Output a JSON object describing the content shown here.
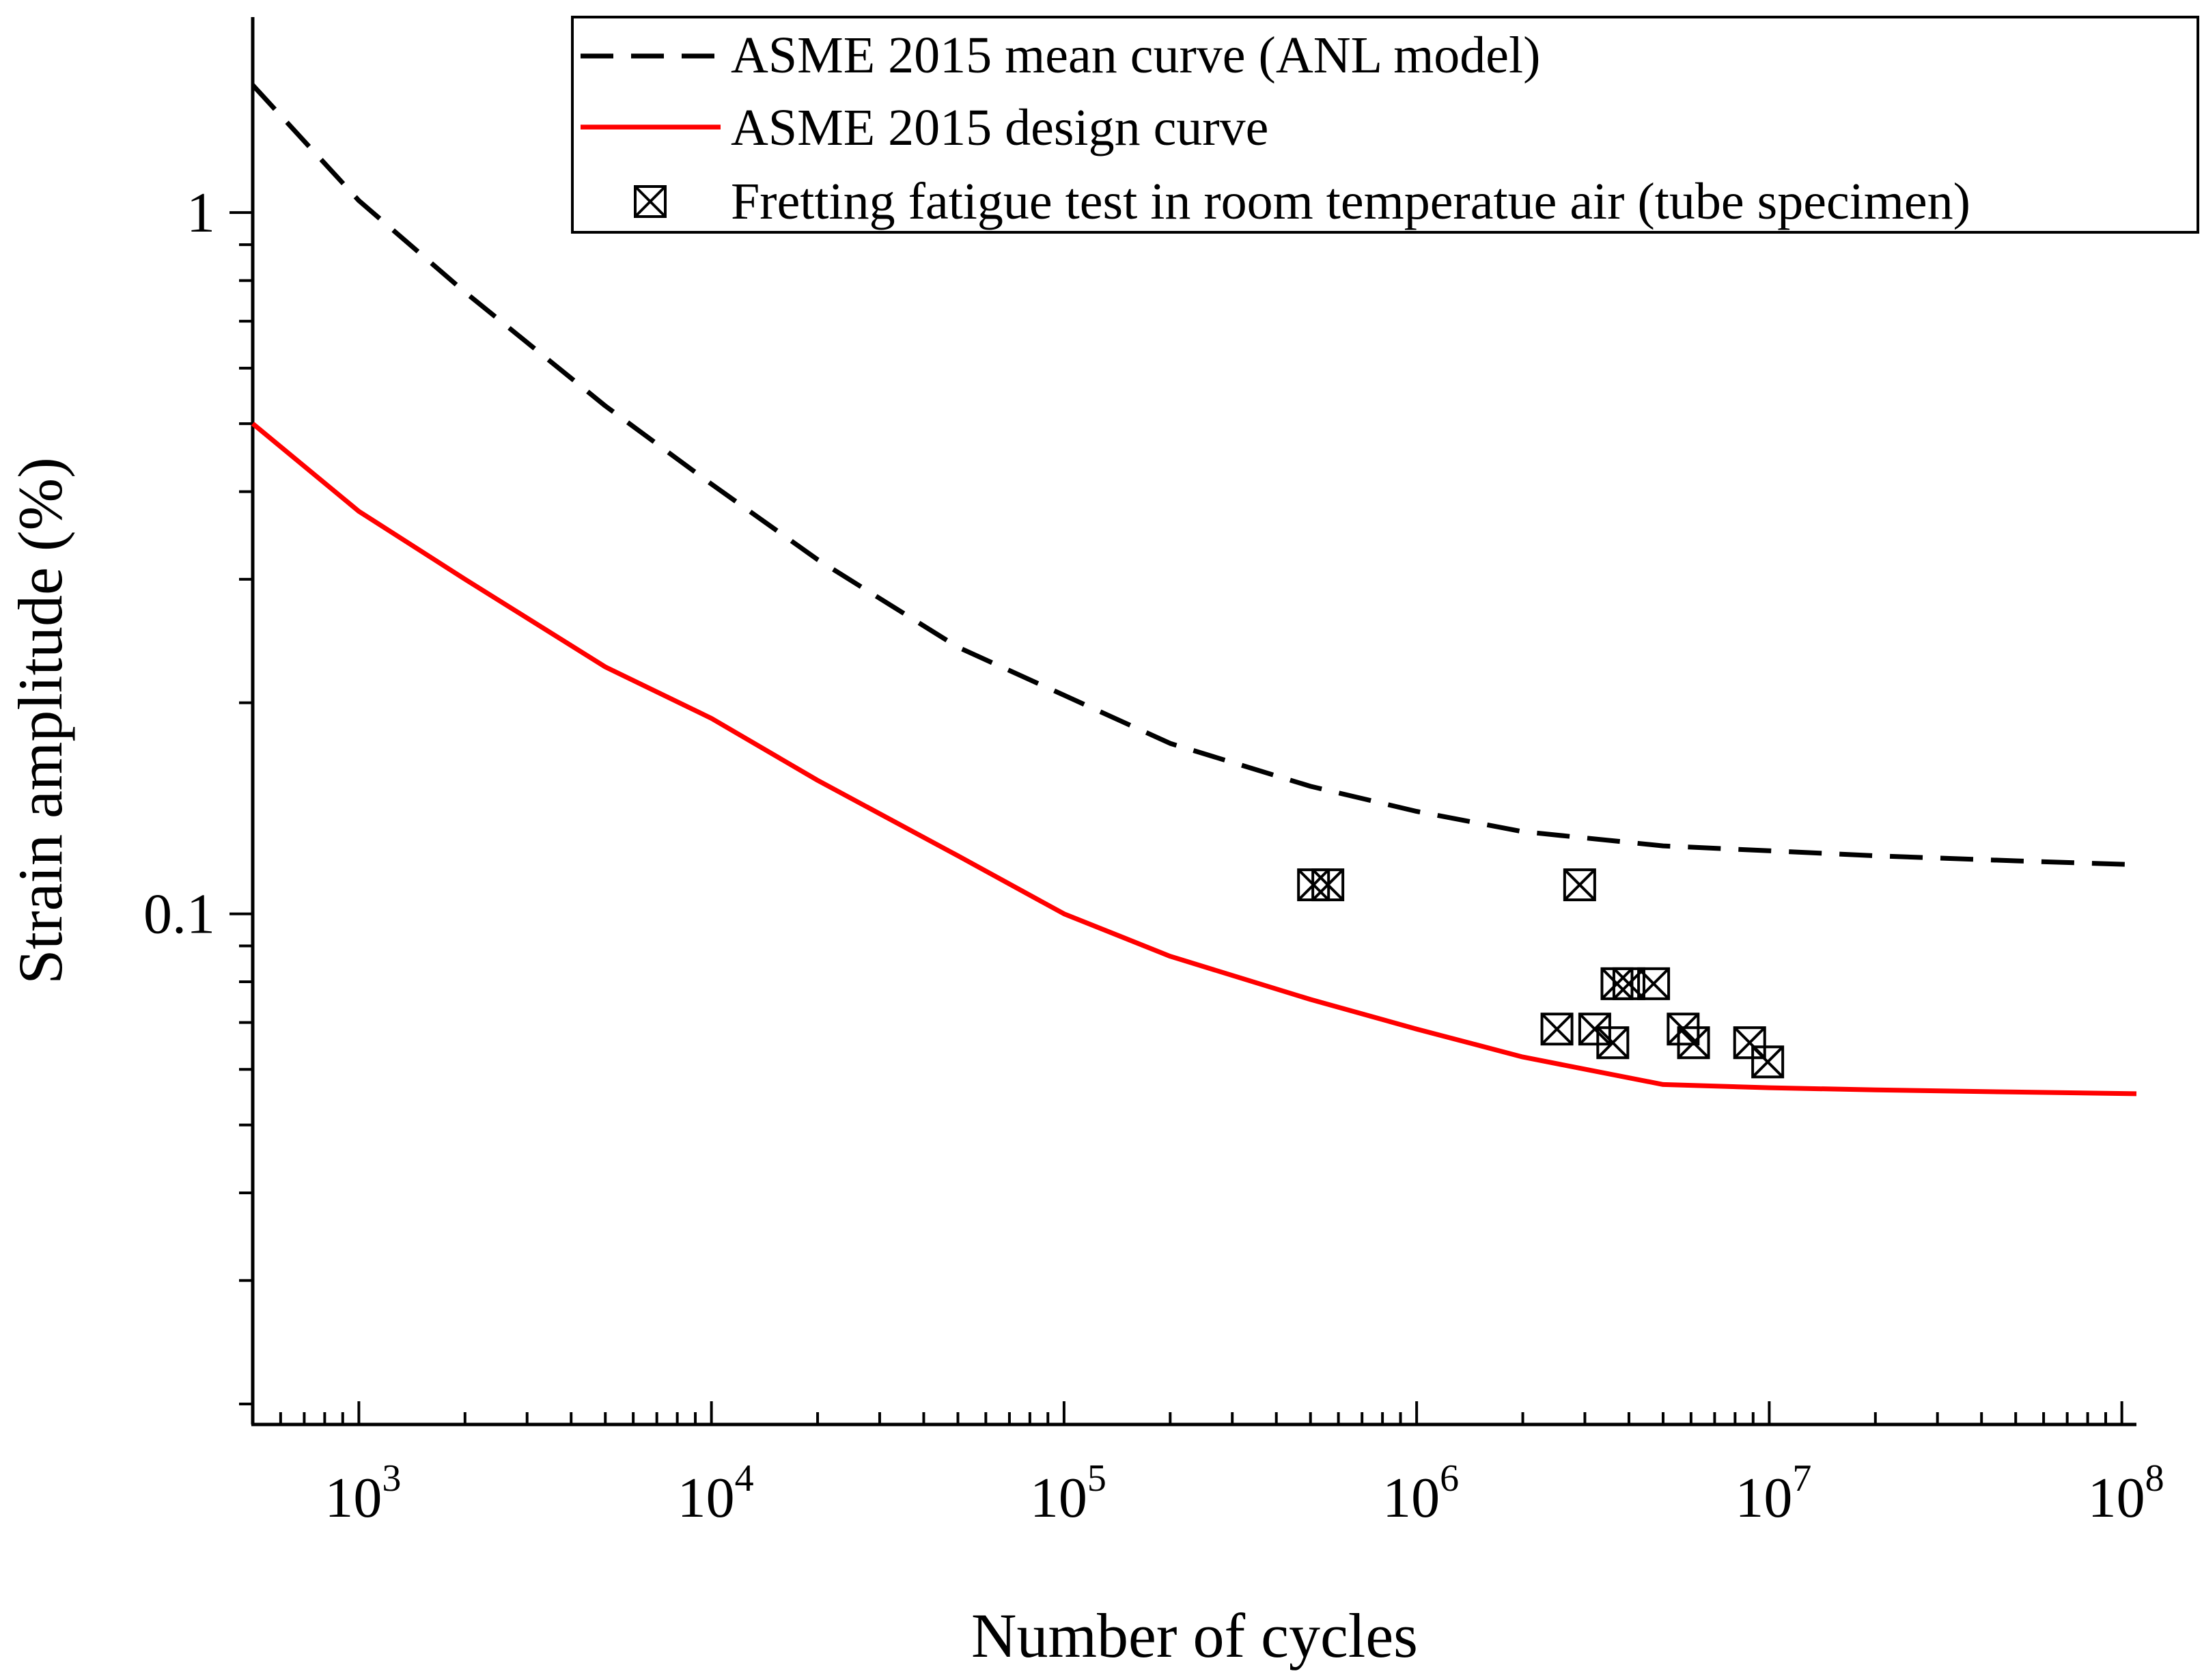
{
  "chart_data": {
    "type": "scatter",
    "xscale": "log",
    "yscale": "log",
    "xlim": [
      500,
      110000000
    ],
    "ylim": [
      0.0187,
      1.9
    ],
    "xlabel": "Number of cycles",
    "ylabel": "Strain amplitude (%)",
    "x_ticks": [
      {
        "base": "10",
        "exp": "3"
      },
      {
        "base": "10",
        "exp": "4"
      },
      {
        "base": "10",
        "exp": "5"
      },
      {
        "base": "10",
        "exp": "6"
      },
      {
        "base": "10",
        "exp": "7"
      },
      {
        "base": "10",
        "exp": "8"
      }
    ],
    "y_ticks": [
      "1",
      "0.1"
    ],
    "series": [
      {
        "name": "ASME 2015 mean curve (ANL model)",
        "style": "dashed",
        "color": "#000000",
        "x": [
          500,
          1000,
          2000,
          5000,
          10000,
          20000,
          50000,
          100000,
          200000,
          500000,
          1000000,
          2000000,
          5000000,
          10000000,
          20000000,
          50000000,
          110000000
        ],
        "y": [
          1.52,
          1.04,
          0.77,
          0.53,
          0.41,
          0.32,
          0.24,
          0.205,
          0.175,
          0.152,
          0.14,
          0.131,
          0.125,
          0.123,
          0.121,
          0.119,
          0.1175
        ]
      },
      {
        "name": "ASME 2015 design curve",
        "style": "solid",
        "color": "#ff0000",
        "x": [
          500,
          1000,
          2000,
          5000,
          10000,
          20000,
          50000,
          100000,
          200000,
          500000,
          1000000,
          2000000,
          5000000,
          10000000,
          20000000,
          50000000,
          110000000
        ],
        "y": [
          0.5,
          0.375,
          0.3,
          0.225,
          0.19,
          0.155,
          0.121,
          0.1,
          0.087,
          0.0755,
          0.0685,
          0.0625,
          0.0571,
          0.0565,
          0.0561,
          0.0557,
          0.0554
        ]
      },
      {
        "name": "Fretting fatigue test in room temperatue air (tube specimen)",
        "style": "marker",
        "marker": "square-x",
        "color": "#000000",
        "x": [
          510000,
          560000,
          2900000,
          3700000,
          4000000,
          4700000,
          2500000,
          3200000,
          3600000,
          5700000,
          6100000,
          8800000,
          9900000
        ],
        "y": [
          0.11,
          0.11,
          0.11,
          0.0795,
          0.0795,
          0.0795,
          0.0685,
          0.0685,
          0.0655,
          0.0685,
          0.0655,
          0.0655,
          0.0615
        ]
      }
    ],
    "legend_position": "top-right"
  }
}
